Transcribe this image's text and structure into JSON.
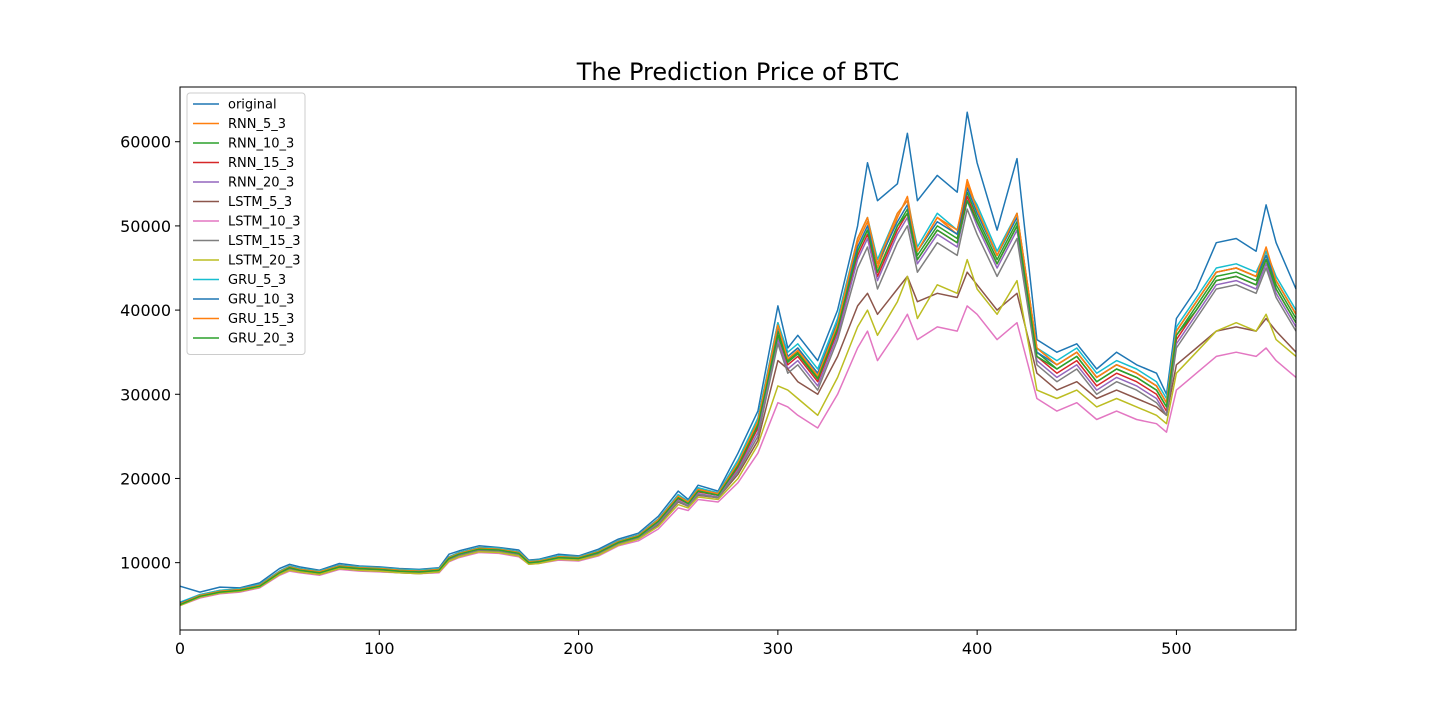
{
  "chart_data": {
    "type": "line",
    "title": "The Prediction Price of BTC",
    "xlabel": "",
    "ylabel": "",
    "xlim": [
      0,
      560
    ],
    "ylim": [
      2000,
      66500
    ],
    "xticks": [
      0,
      100,
      200,
      300,
      400,
      500
    ],
    "yticks": [
      10000,
      20000,
      30000,
      40000,
      50000,
      60000
    ],
    "grid": false,
    "legend_position": "top-left",
    "colors": [
      "#1f77b4",
      "#ff7f0e",
      "#2ca02c",
      "#d62728",
      "#9467bd",
      "#8c564b",
      "#e377c2",
      "#7f7f7f",
      "#bcbd22",
      "#17becf",
      "#1f77b4",
      "#ff7f0e",
      "#2ca02c"
    ],
    "x": [
      0,
      10,
      20,
      30,
      40,
      50,
      55,
      60,
      70,
      80,
      90,
      100,
      110,
      120,
      130,
      135,
      140,
      150,
      160,
      170,
      175,
      180,
      190,
      200,
      210,
      220,
      230,
      240,
      250,
      255,
      260,
      270,
      280,
      290,
      300,
      305,
      310,
      320,
      330,
      340,
      345,
      350,
      360,
      365,
      370,
      380,
      390,
      395,
      400,
      410,
      420,
      430,
      440,
      450,
      460,
      470,
      480,
      490,
      495,
      500,
      510,
      520,
      530,
      540,
      545,
      550,
      560
    ],
    "series": [
      {
        "name": "original",
        "values": [
          7200,
          6500,
          7100,
          7000,
          7600,
          9300,
          9800,
          9500,
          9100,
          9900,
          9600,
          9500,
          9300,
          9200,
          9400,
          11000,
          11400,
          12000,
          11800,
          11500,
          10300,
          10400,
          11000,
          10800,
          11600,
          12800,
          13500,
          15500,
          18500,
          17500,
          19200,
          18500,
          23000,
          28000,
          40500,
          35500,
          37000,
          34000,
          40000,
          50000,
          57500,
          53000,
          55000,
          61000,
          53000,
          56000,
          54000,
          63500,
          57500,
          49500,
          58000,
          36500,
          35000,
          36000,
          33000,
          35000,
          33500,
          32500,
          30000,
          39000,
          42500,
          48000,
          48500,
          47000,
          52500,
          48000,
          42500
        ]
      },
      {
        "name": "RNN_5_3",
        "values": [
          5200,
          6200,
          6700,
          6900,
          7400,
          9000,
          9600,
          9300,
          9000,
          9700,
          9500,
          9400,
          9200,
          9100,
          9300,
          10700,
          11200,
          11800,
          11700,
          11300,
          10200,
          10300,
          10800,
          10700,
          11400,
          12600,
          13300,
          15200,
          18000,
          17300,
          18800,
          18300,
          22000,
          27000,
          38500,
          34500,
          35500,
          32500,
          38500,
          48000,
          50500,
          45000,
          51000,
          53500,
          47000,
          51000,
          49000,
          55500,
          52000,
          46500,
          51500,
          35500,
          33500,
          35000,
          32000,
          33500,
          32500,
          31000,
          29000,
          37500,
          41000,
          44500,
          45000,
          44000,
          47000,
          43500,
          39500
        ]
      },
      {
        "name": "RNN_10_3",
        "values": [
          5100,
          6100,
          6600,
          6800,
          7300,
          8900,
          9500,
          9200,
          8900,
          9600,
          9400,
          9300,
          9100,
          9000,
          9200,
          10600,
          11100,
          11700,
          11600,
          11200,
          10100,
          10200,
          10700,
          10600,
          11300,
          12500,
          13200,
          15000,
          17800,
          17100,
          18600,
          18100,
          21600,
          26500,
          37500,
          34000,
          35000,
          32000,
          38000,
          47000,
          49500,
          44500,
          50000,
          52000,
          46500,
          50000,
          48500,
          54000,
          51000,
          46000,
          50500,
          35000,
          33000,
          34500,
          31500,
          33000,
          32000,
          30500,
          28500,
          37000,
          40500,
          44000,
          44500,
          43500,
          46500,
          43000,
          39000
        ]
      },
      {
        "name": "RNN_15_3",
        "values": [
          5000,
          6000,
          6500,
          6700,
          7200,
          8800,
          9400,
          9100,
          8800,
          9500,
          9300,
          9200,
          9000,
          8900,
          9100,
          10500,
          11000,
          11600,
          11500,
          11100,
          10000,
          10100,
          10600,
          10500,
          11200,
          12400,
          13100,
          14900,
          17600,
          17000,
          18400,
          18000,
          21300,
          26000,
          37000,
          33500,
          34500,
          31500,
          37500,
          46500,
          49000,
          44000,
          49500,
          51500,
          46000,
          49500,
          48000,
          53500,
          50500,
          45500,
          50000,
          34500,
          32500,
          34000,
          31000,
          32500,
          31500,
          30000,
          28000,
          36500,
          40000,
          43500,
          44000,
          43000,
          46000,
          42500,
          38500
        ]
      },
      {
        "name": "RNN_20_3",
        "values": [
          5000,
          5900,
          6400,
          6600,
          7100,
          8700,
          9300,
          9000,
          8700,
          9400,
          9200,
          9100,
          8900,
          8800,
          9000,
          10400,
          10900,
          11500,
          11400,
          11000,
          9900,
          10000,
          10500,
          10400,
          11100,
          12300,
          13000,
          14700,
          17400,
          16800,
          18200,
          17800,
          21000,
          25500,
          36500,
          33000,
          34000,
          31000,
          37000,
          46000,
          48500,
          43500,
          49000,
          51000,
          45500,
          49000,
          47500,
          53000,
          50000,
          45000,
          49500,
          34000,
          32000,
          33500,
          30500,
          32000,
          31000,
          29500,
          27500,
          36000,
          39500,
          43000,
          43500,
          42500,
          45500,
          42000,
          38000
        ]
      },
      {
        "name": "LSTM_5_3",
        "values": [
          5100,
          6000,
          6500,
          6700,
          7200,
          8700,
          9300,
          9000,
          8700,
          9400,
          9200,
          9100,
          8900,
          8800,
          9000,
          10300,
          10800,
          11400,
          11300,
          10900,
          9900,
          10000,
          10500,
          10400,
          11000,
          12200,
          12900,
          14500,
          17200,
          16700,
          18000,
          17700,
          20500,
          24500,
          34000,
          33000,
          31500,
          30000,
          34500,
          40500,
          42000,
          39500,
          42500,
          44000,
          41000,
          42000,
          41500,
          44500,
          43000,
          40000,
          42000,
          32500,
          30500,
          31500,
          29500,
          30500,
          29500,
          28500,
          27500,
          33500,
          35500,
          37500,
          38000,
          37500,
          39000,
          37500,
          35000
        ]
      },
      {
        "name": "LSTM_10_3",
        "values": [
          4900,
          5800,
          6300,
          6500,
          7000,
          8500,
          9000,
          8800,
          8500,
          9200,
          9000,
          8900,
          8800,
          8700,
          8800,
          10100,
          10600,
          11200,
          11100,
          10700,
          9800,
          9900,
          10300,
          10200,
          10800,
          12000,
          12600,
          14000,
          16500,
          16200,
          17500,
          17200,
          19500,
          23000,
          29000,
          28500,
          27500,
          26000,
          30000,
          35500,
          37500,
          34000,
          37500,
          39500,
          36500,
          38000,
          37500,
          40500,
          39500,
          36500,
          38500,
          29500,
          28000,
          29000,
          27000,
          28000,
          27000,
          26500,
          25500,
          30500,
          32500,
          34500,
          35000,
          34500,
          35500,
          34000,
          32000
        ]
      },
      {
        "name": "LSTM_15_3",
        "values": [
          5000,
          5900,
          6400,
          6600,
          7100,
          8600,
          9200,
          8900,
          8600,
          9300,
          9100,
          9000,
          8800,
          8700,
          8900,
          10300,
          10800,
          11400,
          11300,
          10900,
          9900,
          10000,
          10500,
          10300,
          11000,
          12200,
          12900,
          14600,
          17300,
          16700,
          18100,
          17700,
          20800,
          25000,
          36000,
          32500,
          33500,
          30500,
          36500,
          45000,
          47500,
          42500,
          48000,
          50000,
          44500,
          48000,
          46500,
          52000,
          49000,
          44000,
          48500,
          33500,
          31500,
          33000,
          30000,
          31500,
          30500,
          29000,
          27500,
          35500,
          39000,
          42500,
          43000,
          42000,
          45000,
          41500,
          37500
        ]
      },
      {
        "name": "LSTM_20_3",
        "values": [
          4900,
          5900,
          6400,
          6600,
          7100,
          8600,
          9100,
          8900,
          8600,
          9300,
          9100,
          9000,
          8800,
          8700,
          8900,
          10200,
          10700,
          11300,
          11200,
          10800,
          9800,
          9900,
          10400,
          10300,
          10900,
          12100,
          12800,
          14300,
          16900,
          16500,
          17800,
          17500,
          20000,
          24000,
          31000,
          30500,
          29500,
          27500,
          32000,
          38000,
          40000,
          37000,
          41000,
          44000,
          39000,
          43000,
          42000,
          46000,
          42500,
          39500,
          43500,
          30500,
          29500,
          30500,
          28500,
          29500,
          28500,
          27500,
          26500,
          32500,
          35000,
          37500,
          38500,
          37500,
          39500,
          36500,
          34500
        ]
      },
      {
        "name": "GRU_5_3",
        "values": [
          5300,
          6200,
          6700,
          6900,
          7400,
          9000,
          9600,
          9300,
          9000,
          9700,
          9500,
          9400,
          9200,
          9100,
          9300,
          10700,
          11200,
          11800,
          11700,
          11300,
          10200,
          10300,
          10800,
          10700,
          11400,
          12600,
          13300,
          15200,
          18100,
          17300,
          18900,
          18300,
          22200,
          27200,
          38500,
          35000,
          36000,
          33000,
          39000,
          48500,
          51000,
          46000,
          51500,
          53000,
          47500,
          51500,
          49500,
          54500,
          52500,
          47000,
          51500,
          35500,
          34000,
          35500,
          32500,
          34000,
          33000,
          31500,
          29500,
          38000,
          41500,
          45000,
          45500,
          44500,
          47000,
          44000,
          40000
        ]
      },
      {
        "name": "GRU_10_3",
        "values": [
          5200,
          6100,
          6600,
          6800,
          7300,
          8900,
          9500,
          9200,
          8900,
          9600,
          9400,
          9300,
          9100,
          9000,
          9200,
          10600,
          11100,
          11700,
          11600,
          11200,
          10100,
          10200,
          10700,
          10600,
          11300,
          12500,
          13200,
          15100,
          17900,
          17200,
          18700,
          18200,
          21800,
          26800,
          38000,
          34500,
          35500,
          32500,
          38500,
          47500,
          50000,
          45500,
          50500,
          52500,
          47000,
          50500,
          49000,
          54500,
          51500,
          46500,
          51000,
          35000,
          33500,
          35000,
          32000,
          33500,
          32500,
          31000,
          29000,
          37500,
          41000,
          44500,
          45000,
          44000,
          46500,
          43500,
          39500
        ]
      },
      {
        "name": "GRU_15_3",
        "values": [
          5100,
          6100,
          6600,
          6800,
          7300,
          8900,
          9500,
          9200,
          8900,
          9600,
          9400,
          9300,
          9100,
          9000,
          9200,
          10600,
          11100,
          11700,
          11600,
          11200,
          10100,
          10200,
          10700,
          10600,
          11300,
          12500,
          13200,
          15100,
          17900,
          17200,
          18700,
          18200,
          21800,
          26800,
          38200,
          34200,
          35200,
          32200,
          38300,
          48500,
          51000,
          45500,
          51500,
          53000,
          47000,
          51000,
          49500,
          55000,
          52000,
          46500,
          51500,
          35500,
          33500,
          35000,
          32000,
          33500,
          32500,
          31000,
          29000,
          37500,
          41000,
          44500,
          45000,
          44000,
          47500,
          43500,
          39500
        ]
      },
      {
        "name": "GRU_20_3",
        "values": [
          5000,
          6000,
          6500,
          6700,
          7200,
          8800,
          9400,
          9100,
          8800,
          9500,
          9300,
          9200,
          9000,
          8900,
          9100,
          10500,
          11000,
          11600,
          11500,
          11100,
          10000,
          10100,
          10600,
          10500,
          11200,
          12400,
          13100,
          14900,
          17700,
          17000,
          18500,
          18000,
          21500,
          26300,
          37000,
          33800,
          34800,
          31800,
          37800,
          47000,
          49500,
          44500,
          50000,
          51500,
          46000,
          49500,
          48000,
          53000,
          50500,
          45500,
          50000,
          34500,
          33000,
          34500,
          31500,
          33000,
          32000,
          30500,
          28500,
          37000,
          40000,
          43500,
          44000,
          43000,
          46000,
          42500,
          38500
        ]
      }
    ]
  }
}
